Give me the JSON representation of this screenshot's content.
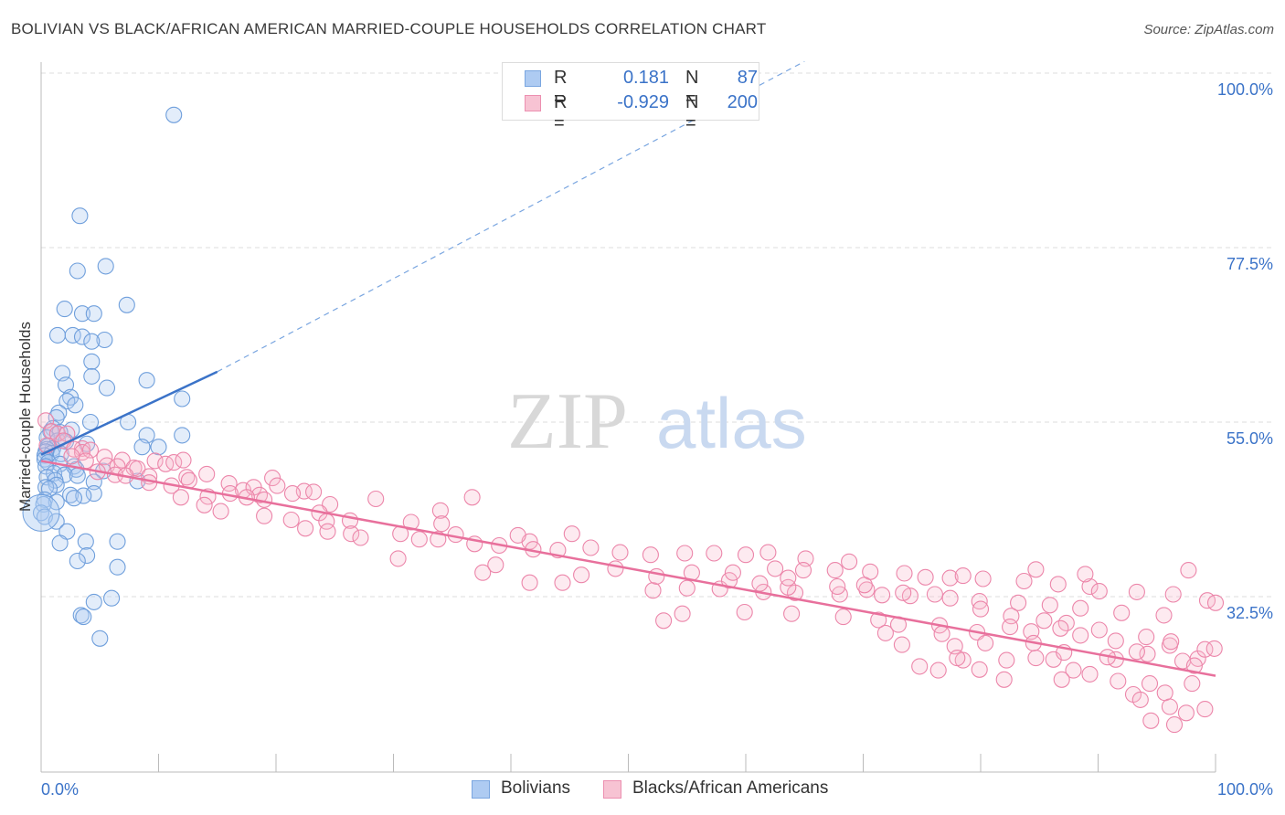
{
  "title": "BOLIVIAN VS BLACK/AFRICAN AMERICAN MARRIED-COUPLE HOUSEHOLDS CORRELATION CHART",
  "source": "Source: ZipAtlas.com",
  "watermark": {
    "zip": "ZIP",
    "atlas": "atlas"
  },
  "colors": {
    "blue": "#3b73c8",
    "blue_fill": "#aecbf2",
    "pink": "#e8709c",
    "pink_fill": "#f7b8cc",
    "grid": "#dddddd"
  },
  "legend": {
    "rows": [
      {
        "r_label": "R =",
        "r_value": "0.181",
        "n_label": "N =",
        "n_value": "87"
      },
      {
        "r_label": "R =",
        "r_value": "-0.929",
        "n_label": "N =",
        "n_value": "200"
      }
    ]
  },
  "bottom_legend": [
    "Bolivians",
    "Blacks/African Americans"
  ],
  "chart_data": {
    "type": "scatter",
    "xlabel": "",
    "ylabel": "Married-couple Households",
    "x_tick_labels": [
      "0.0%",
      "100.0%"
    ],
    "y_tick_labels": [
      "100.0%",
      "77.5%",
      "55.0%",
      "32.5%"
    ],
    "xlim": [
      0,
      100
    ],
    "ylim": [
      10,
      102
    ],
    "y_grid": [
      100,
      77.5,
      55,
      32.5
    ],
    "series": [
      {
        "name": "Bolivians",
        "color": "#3b73c8",
        "trend": {
          "x0": 0,
          "y0": 50.8,
          "x1": 15,
          "y1": 61.5,
          "dash_to_x": 65,
          "dash_to_y": 101.5
        },
        "points": [
          [
            11.3,
            94.6
          ],
          [
            3.3,
            81.6
          ],
          [
            5.5,
            75.1
          ],
          [
            3.1,
            74.5
          ],
          [
            7.3,
            70.1
          ],
          [
            2.0,
            69.6
          ],
          [
            3.5,
            69.0
          ],
          [
            4.5,
            69.0
          ],
          [
            1.4,
            66.2
          ],
          [
            2.7,
            66.2
          ],
          [
            3.5,
            66.0
          ],
          [
            5.4,
            65.6
          ],
          [
            4.3,
            65.4
          ],
          [
            4.3,
            62.8
          ],
          [
            1.8,
            61.3
          ],
          [
            4.3,
            60.9
          ],
          [
            9.0,
            60.4
          ],
          [
            2.1,
            59.8
          ],
          [
            5.6,
            59.4
          ],
          [
            2.5,
            58.2
          ],
          [
            12.0,
            58.0
          ],
          [
            2.2,
            57.7
          ],
          [
            2.9,
            57.2
          ],
          [
            1.5,
            56.2
          ],
          [
            1.3,
            55.6
          ],
          [
            4.2,
            55.0
          ],
          [
            7.4,
            55.0
          ],
          [
            1.0,
            54.2
          ],
          [
            2.6,
            54.0
          ],
          [
            0.8,
            53.8
          ],
          [
            1.6,
            53.7
          ],
          [
            9.0,
            53.3
          ],
          [
            12.0,
            53.3
          ],
          [
            0.5,
            53.0
          ],
          [
            1.4,
            52.6
          ],
          [
            2.1,
            52.5
          ],
          [
            3.9,
            52.2
          ],
          [
            0.6,
            51.9
          ],
          [
            8.6,
            51.8
          ],
          [
            10.0,
            51.8
          ],
          [
            1.0,
            51.6
          ],
          [
            0.5,
            51.5
          ],
          [
            0.4,
            51.2
          ],
          [
            0.9,
            51.0
          ],
          [
            1.7,
            50.9
          ],
          [
            0.3,
            50.7
          ],
          [
            0.3,
            50.2
          ],
          [
            0.6,
            49.8
          ],
          [
            1.6,
            49.6
          ],
          [
            0.4,
            49.3
          ],
          [
            2.8,
            49.3
          ],
          [
            3.0,
            48.9
          ],
          [
            5.3,
            48.7
          ],
          [
            1.1,
            48.4
          ],
          [
            2.0,
            48.2
          ],
          [
            3.1,
            48.1
          ],
          [
            0.5,
            47.9
          ],
          [
            1.2,
            47.5
          ],
          [
            4.5,
            47.3
          ],
          [
            8.2,
            47.4
          ],
          [
            1.3,
            46.9
          ],
          [
            0.4,
            46.6
          ],
          [
            0.7,
            46.4
          ],
          [
            4.5,
            45.8
          ],
          [
            2.5,
            45.6
          ],
          [
            3.6,
            45.5
          ],
          [
            0.3,
            45.0
          ],
          [
            2.8,
            45.2
          ],
          [
            1.3,
            44.7
          ],
          [
            0.2,
            44.4
          ],
          [
            0.0,
            43.3
          ],
          [
            0.3,
            42.8
          ],
          [
            1.3,
            42.2
          ],
          [
            2.2,
            40.9
          ],
          [
            1.6,
            39.4
          ],
          [
            3.8,
            39.6
          ],
          [
            6.5,
            39.6
          ],
          [
            3.9,
            37.8
          ],
          [
            3.1,
            37.1
          ],
          [
            6.5,
            36.3
          ],
          [
            6.0,
            32.3
          ],
          [
            4.5,
            31.8
          ],
          [
            3.4,
            30.1
          ],
          [
            3.6,
            29.9
          ],
          [
            5.0,
            27.1
          ]
        ]
      },
      {
        "name": "Blacks/African Americans",
        "color": "#e8709c",
        "trend": {
          "x0": 0,
          "y0": 50.0,
          "x1": 100,
          "y1": 22.3
        },
        "points": [
          [
            0.4,
            55.2
          ],
          [
            0.9,
            53.8
          ],
          [
            1.4,
            53.5
          ],
          [
            2.2,
            53.5
          ],
          [
            1.9,
            52.6
          ],
          [
            0.5,
            52.0
          ],
          [
            3.5,
            51.6
          ],
          [
            2.8,
            51.5
          ],
          [
            3.5,
            51.1
          ],
          [
            4.2,
            51.4
          ],
          [
            2.6,
            50.6
          ],
          [
            5.4,
            50.5
          ],
          [
            6.9,
            50.1
          ],
          [
            3.8,
            50.0
          ],
          [
            9.7,
            50.0
          ],
          [
            10.6,
            49.6
          ],
          [
            11.3,
            49.8
          ],
          [
            12.1,
            50.1
          ],
          [
            5.6,
            49.4
          ],
          [
            6.5,
            49.3
          ],
          [
            7.9,
            49.1
          ],
          [
            8.2,
            49.0
          ],
          [
            4.8,
            48.6
          ],
          [
            6.3,
            48.2
          ],
          [
            7.2,
            48.1
          ],
          [
            9.2,
            48.0
          ],
          [
            12.4,
            47.9
          ],
          [
            14.1,
            48.3
          ],
          [
            12.6,
            47.5
          ],
          [
            19.7,
            47.8
          ],
          [
            9.2,
            47.2
          ],
          [
            16.0,
            47.1
          ],
          [
            11.1,
            46.8
          ],
          [
            17.2,
            46.2
          ],
          [
            18.1,
            46.6
          ],
          [
            20.1,
            46.8
          ],
          [
            22.4,
            46.1
          ],
          [
            16.1,
            45.8
          ],
          [
            18.6,
            45.6
          ],
          [
            11.9,
            45.3
          ],
          [
            14.2,
            45.4
          ],
          [
            19.0,
            45.0
          ],
          [
            21.4,
            45.8
          ],
          [
            23.2,
            46.0
          ],
          [
            28.5,
            45.1
          ],
          [
            36.7,
            45.3
          ],
          [
            17.5,
            45.3
          ],
          [
            13.9,
            44.3
          ],
          [
            24.6,
            44.4
          ],
          [
            15.3,
            43.5
          ],
          [
            23.7,
            43.3
          ],
          [
            19.0,
            42.9
          ],
          [
            26.3,
            42.3
          ],
          [
            34.0,
            43.6
          ],
          [
            21.3,
            42.4
          ],
          [
            24.3,
            42.2
          ],
          [
            31.5,
            42.1
          ],
          [
            22.5,
            41.3
          ],
          [
            24.4,
            40.9
          ],
          [
            34.1,
            41.9
          ],
          [
            26.4,
            40.6
          ],
          [
            30.6,
            40.6
          ],
          [
            35.3,
            40.5
          ],
          [
            32.2,
            39.9
          ],
          [
            41.6,
            39.6
          ],
          [
            45.2,
            40.6
          ],
          [
            40.6,
            40.4
          ],
          [
            27.2,
            40.1
          ],
          [
            33.8,
            39.9
          ],
          [
            36.9,
            39.3
          ],
          [
            39.0,
            39.1
          ],
          [
            41.9,
            38.6
          ],
          [
            44.0,
            38.5
          ],
          [
            46.8,
            38.8
          ],
          [
            49.3,
            38.2
          ],
          [
            51.9,
            37.9
          ],
          [
            54.8,
            38.1
          ],
          [
            57.3,
            38.1
          ],
          [
            60.0,
            37.9
          ],
          [
            61.9,
            38.2
          ],
          [
            65.1,
            37.4
          ],
          [
            68.8,
            37.0
          ],
          [
            62.5,
            36.1
          ],
          [
            64.9,
            35.9
          ],
          [
            67.6,
            35.9
          ],
          [
            70.6,
            35.7
          ],
          [
            73.5,
            35.5
          ],
          [
            75.3,
            35.0
          ],
          [
            77.4,
            34.9
          ],
          [
            80.2,
            34.8
          ],
          [
            83.7,
            34.5
          ],
          [
            86.6,
            34.1
          ],
          [
            89.3,
            33.8
          ],
          [
            90.1,
            33.2
          ],
          [
            93.3,
            33.1
          ],
          [
            96.4,
            32.8
          ],
          [
            99.3,
            32.0
          ],
          [
            44.4,
            34.3
          ],
          [
            52.1,
            33.3
          ],
          [
            55.0,
            33.6
          ],
          [
            57.8,
            33.5
          ],
          [
            61.5,
            33.1
          ],
          [
            64.2,
            33.0
          ],
          [
            68.0,
            32.8
          ],
          [
            71.6,
            32.7
          ],
          [
            74.0,
            32.6
          ],
          [
            77.4,
            32.3
          ],
          [
            79.9,
            31.9
          ],
          [
            83.2,
            31.7
          ],
          [
            85.9,
            31.4
          ],
          [
            88.5,
            31.0
          ],
          [
            92.0,
            30.4
          ],
          [
            95.6,
            30.1
          ],
          [
            30.4,
            37.4
          ],
          [
            37.6,
            35.6
          ],
          [
            38.7,
            36.6
          ],
          [
            41.6,
            34.3
          ],
          [
            46.0,
            35.3
          ],
          [
            48.9,
            36.1
          ],
          [
            52.4,
            35.1
          ],
          [
            55.4,
            35.6
          ],
          [
            58.6,
            34.6
          ],
          [
            61.2,
            34.2
          ],
          [
            63.6,
            33.7
          ],
          [
            67.8,
            33.8
          ],
          [
            70.3,
            33.4
          ],
          [
            73.4,
            33.0
          ],
          [
            76.1,
            32.8
          ],
          [
            80.0,
            30.9
          ],
          [
            82.6,
            30.0
          ],
          [
            85.4,
            29.4
          ],
          [
            87.3,
            29.1
          ],
          [
            90.1,
            28.2
          ],
          [
            94.1,
            27.3
          ],
          [
            96.1,
            26.2
          ],
          [
            98.5,
            24.5
          ],
          [
            53.0,
            29.4
          ],
          [
            54.6,
            30.3
          ],
          [
            59.9,
            30.5
          ],
          [
            63.9,
            30.3
          ],
          [
            68.3,
            29.9
          ],
          [
            71.3,
            29.5
          ],
          [
            73.0,
            28.9
          ],
          [
            76.5,
            28.8
          ],
          [
            79.7,
            27.9
          ],
          [
            82.5,
            28.6
          ],
          [
            84.3,
            28.0
          ],
          [
            86.8,
            28.4
          ],
          [
            88.5,
            27.5
          ],
          [
            91.5,
            26.8
          ],
          [
            96.2,
            26.7
          ],
          [
            99.1,
            25.7
          ],
          [
            71.9,
            27.8
          ],
          [
            73.3,
            26.3
          ],
          [
            74.8,
            23.5
          ],
          [
            76.4,
            23.0
          ],
          [
            78.5,
            24.3
          ],
          [
            79.9,
            23.1
          ],
          [
            82.2,
            24.3
          ],
          [
            84.7,
            24.6
          ],
          [
            86.2,
            24.4
          ],
          [
            87.9,
            23.0
          ],
          [
            91.5,
            24.4
          ],
          [
            94.2,
            25.1
          ],
          [
            97.2,
            24.2
          ],
          [
            100.0,
            31.7
          ],
          [
            76.7,
            27.7
          ],
          [
            77.8,
            26.1
          ],
          [
            80.4,
            26.5
          ],
          [
            84.5,
            26.5
          ],
          [
            87.1,
            25.3
          ],
          [
            90.8,
            24.7
          ],
          [
            93.3,
            25.4
          ],
          [
            98.2,
            23.6
          ],
          [
            78.0,
            24.6
          ],
          [
            82.0,
            21.8
          ],
          [
            86.9,
            21.8
          ],
          [
            89.3,
            22.5
          ],
          [
            91.7,
            21.6
          ],
          [
            94.4,
            21.3
          ],
          [
            95.7,
            20.1
          ],
          [
            98.0,
            21.3
          ],
          [
            99.9,
            25.8
          ],
          [
            93.0,
            19.9
          ],
          [
            93.6,
            19.2
          ],
          [
            96.1,
            18.3
          ],
          [
            97.5,
            17.5
          ],
          [
            99.1,
            18.0
          ],
          [
            94.5,
            16.5
          ],
          [
            96.5,
            16.0
          ],
          [
            84.7,
            36.0
          ],
          [
            97.7,
            35.9
          ],
          [
            88.9,
            35.4
          ],
          [
            78.5,
            35.2
          ],
          [
            70.1,
            34.0
          ],
          [
            58.9,
            35.6
          ],
          [
            63.6,
            34.9
          ]
        ]
      }
    ]
  }
}
